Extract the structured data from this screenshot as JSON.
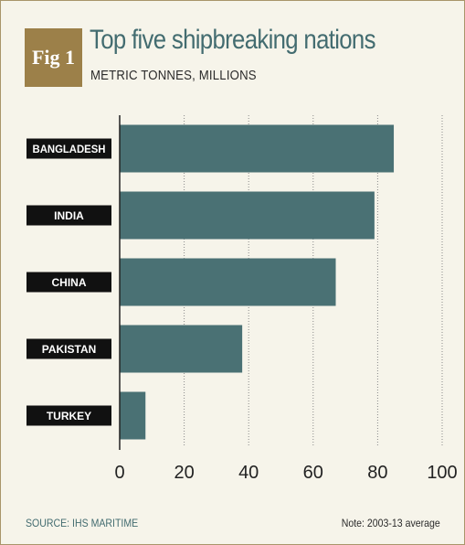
{
  "badge": "Fig 1",
  "chart_data": {
    "type": "bar",
    "orientation": "horizontal",
    "title": "Top five shipbreaking nations",
    "subtitle": "METRIC TONNES, MILLIONS",
    "categories": [
      "BANGLADESH",
      "INDIA",
      "CHINA",
      "PAKISTAN",
      "TURKEY"
    ],
    "values": [
      85,
      79,
      67,
      38,
      8
    ],
    "xlim": [
      0,
      100
    ],
    "xticks": [
      0,
      20,
      40,
      60,
      80,
      100
    ],
    "grid": "vertical-dotted",
    "bar_color": "#4a7174",
    "label_bg": "#111111"
  },
  "source": "SOURCE: IHS MARITIME",
  "note": "Note: 2003-13 average"
}
